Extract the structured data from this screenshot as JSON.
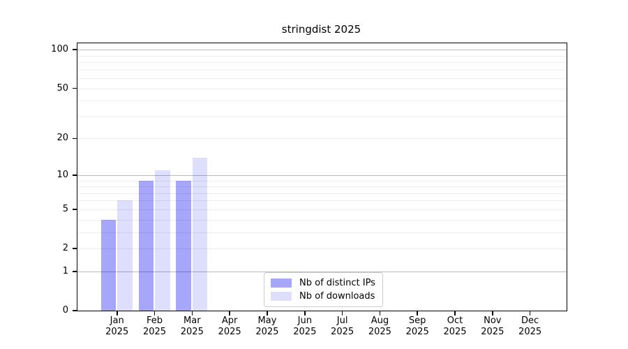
{
  "figure": {
    "background": "#ffffff"
  },
  "chart_data": {
    "type": "bar",
    "title": "stringdist 2025",
    "x_months": [
      "Jan",
      "Feb",
      "Mar",
      "Apr",
      "May",
      "Jun",
      "Jul",
      "Aug",
      "Sep",
      "Oct",
      "Nov",
      "Dec"
    ],
    "x_year": "2025",
    "categories": [
      "Jan 2025",
      "Feb 2025",
      "Mar 2025",
      "Apr 2025",
      "May 2025",
      "Jun 2025",
      "Jul 2025",
      "Aug 2025",
      "Sep 2025",
      "Oct 2025",
      "Nov 2025",
      "Dec 2025"
    ],
    "series": [
      {
        "name": "Nb of distinct IPs",
        "color": "rgba(0,0,240,0.35)",
        "values": [
          4,
          9,
          9,
          0,
          0,
          0,
          0,
          0,
          0,
          0,
          0,
          0
        ]
      },
      {
        "name": "Nb of downloads",
        "color": "rgba(0,0,240,0.13)",
        "values": [
          6,
          11,
          14,
          0,
          0,
          0,
          0,
          0,
          0,
          0,
          0,
          0
        ]
      }
    ],
    "yscale": "log1p",
    "ylim": [
      0,
      112
    ],
    "y_tick_labels": [
      0,
      1,
      2,
      5,
      10,
      20,
      50,
      100
    ],
    "y_major_gridlines": [
      1,
      10,
      100
    ],
    "y_minor_gridlines": [
      2,
      3,
      4,
      5,
      6,
      7,
      8,
      9,
      20,
      30,
      40,
      50,
      60,
      70,
      80,
      90
    ],
    "grid": true,
    "legend_position": "lower center",
    "xlabel": "",
    "ylabel": ""
  },
  "colors": {
    "major_grid": "#b9b9b9",
    "minor_grid": "#ececec",
    "axis": "#000000",
    "legend_border": "#cccccc"
  }
}
